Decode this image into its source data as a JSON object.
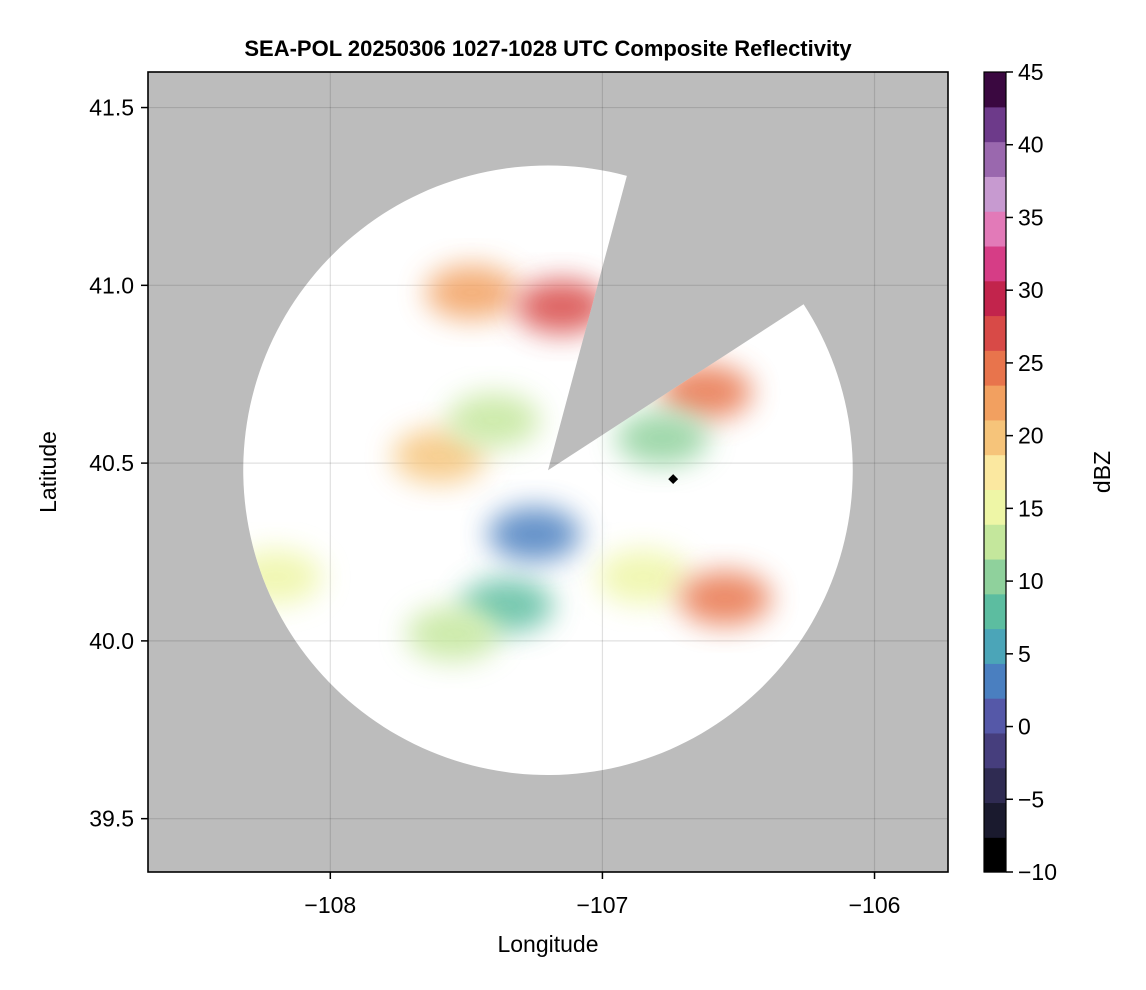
{
  "chart_data": {
    "type": "heatmap",
    "title": "SEA-POL 20250306 1027-1028 UTC Composite Reflectivity",
    "xlabel": "Longitude",
    "ylabel": "Latitude",
    "xlim": [
      -108.67,
      -105.73
    ],
    "ylim": [
      39.35,
      41.6
    ],
    "x_ticks": [
      -108,
      -107,
      -106
    ],
    "x_tick_labels": [
      "−108",
      "−107",
      "−106"
    ],
    "y_ticks": [
      39.5,
      40.0,
      40.5,
      41.0,
      41.5
    ],
    "y_tick_labels": [
      "39.5",
      "40.0",
      "40.5",
      "41.0",
      "41.5"
    ],
    "grid": true,
    "background_color": "#bcbcbc",
    "radar": {
      "center": [
        -107.2,
        40.48
      ],
      "range_deg": 1.12,
      "blocked_sectors_deg_from_north": [
        [
          15,
          57
        ]
      ]
    },
    "marker": {
      "lon": -106.74,
      "lat": 40.455
    },
    "colorbar": {
      "label": "dBZ",
      "min": -10,
      "max": 45,
      "ticks": [
        -10,
        -5,
        0,
        5,
        10,
        15,
        20,
        25,
        30,
        35,
        40,
        45
      ],
      "tick_labels": [
        "−10",
        "−5",
        "0",
        "5",
        "10",
        "15",
        "20",
        "25",
        "30",
        "35",
        "40",
        "45"
      ],
      "colors": [
        "#000000",
        "#1a1a2e",
        "#2f2b52",
        "#463e7d",
        "#5558a8",
        "#4a7fc0",
        "#4ba5b8",
        "#5cbda0",
        "#8fd19c",
        "#c4e79c",
        "#eef6a6",
        "#fbe8a0",
        "#f6c47a",
        "#f2a060",
        "#e8744c",
        "#d84a47",
        "#c2244c",
        "#d63d86",
        "#e27ab8",
        "#c79ad0",
        "#9a68ae",
        "#6d3a8a",
        "#3a0840"
      ]
    },
    "echo_regions": [
      {
        "lon": -107.48,
        "lat": 40.98,
        "dbz": 22
      },
      {
        "lon": -107.15,
        "lat": 40.94,
        "dbz": 28
      },
      {
        "lon": -107.6,
        "lat": 40.52,
        "dbz": 20
      },
      {
        "lon": -107.4,
        "lat": 40.62,
        "dbz": 12
      },
      {
        "lon": -106.62,
        "lat": 40.7,
        "dbz": 26
      },
      {
        "lon": -106.78,
        "lat": 40.57,
        "dbz": 10
      },
      {
        "lon": -106.85,
        "lat": 40.18,
        "dbz": 15
      },
      {
        "lon": -106.55,
        "lat": 40.12,
        "dbz": 24
      },
      {
        "lon": -107.35,
        "lat": 40.1,
        "dbz": 8
      },
      {
        "lon": -107.55,
        "lat": 40.02,
        "dbz": 12
      },
      {
        "lon": -108.2,
        "lat": 40.18,
        "dbz": 16
      },
      {
        "lon": -107.25,
        "lat": 40.3,
        "dbz": 2
      }
    ]
  }
}
